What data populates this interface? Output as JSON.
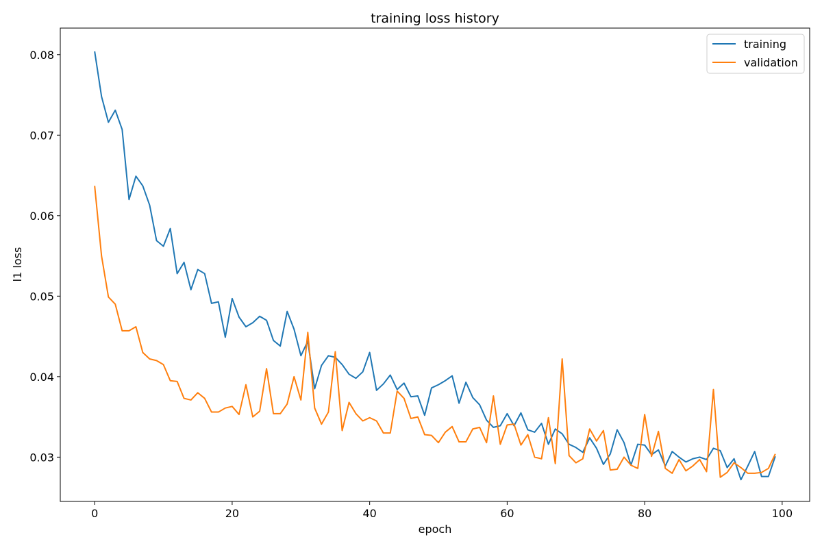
{
  "chart_data": {
    "type": "line",
    "title": "training loss history",
    "xlabel": "epoch",
    "ylabel": "l1 loss",
    "xlim": [
      -5,
      104
    ],
    "ylim": [
      0.0245,
      0.0833
    ],
    "xticks": [
      0,
      20,
      40,
      60,
      80,
      100
    ],
    "xtick_labels": [
      "0",
      "20",
      "40",
      "60",
      "80",
      "100"
    ],
    "yticks": [
      0.03,
      0.04,
      0.05,
      0.06,
      0.07,
      0.08
    ],
    "ytick_labels": [
      "0.03",
      "0.04",
      "0.05",
      "0.06",
      "0.07",
      "0.08"
    ],
    "grid": false,
    "legend_position": "top-right",
    "x": [
      0,
      1,
      2,
      3,
      4,
      5,
      6,
      7,
      8,
      9,
      10,
      11,
      12,
      13,
      14,
      15,
      16,
      17,
      18,
      19,
      20,
      21,
      22,
      23,
      24,
      25,
      26,
      27,
      28,
      29,
      30,
      31,
      32,
      33,
      34,
      35,
      36,
      37,
      38,
      39,
      40,
      41,
      42,
      43,
      44,
      45,
      46,
      47,
      48,
      49,
      50,
      51,
      52,
      53,
      54,
      55,
      56,
      57,
      58,
      59,
      60,
      61,
      62,
      63,
      64,
      65,
      66,
      67,
      68,
      69,
      70,
      71,
      72,
      73,
      74,
      75,
      76,
      77,
      78,
      79,
      80,
      81,
      82,
      83,
      84,
      85,
      86,
      87,
      88,
      89,
      90,
      91,
      92,
      93,
      94,
      95,
      96,
      97,
      98,
      99
    ],
    "series": [
      {
        "name": "training",
        "color": "#1f77b4",
        "values": [
          0.0804,
          0.0748,
          0.0716,
          0.0731,
          0.0707,
          0.062,
          0.0649,
          0.0637,
          0.0613,
          0.0569,
          0.0562,
          0.0584,
          0.0528,
          0.0542,
          0.0508,
          0.0533,
          0.0528,
          0.0491,
          0.0493,
          0.0449,
          0.0497,
          0.0474,
          0.0462,
          0.0467,
          0.0475,
          0.047,
          0.0445,
          0.0438,
          0.0481,
          0.0459,
          0.0426,
          0.0444,
          0.0385,
          0.0414,
          0.0426,
          0.0424,
          0.0415,
          0.0403,
          0.0398,
          0.0406,
          0.043,
          0.0383,
          0.0391,
          0.0402,
          0.0384,
          0.0392,
          0.0375,
          0.0376,
          0.0352,
          0.0386,
          0.039,
          0.0395,
          0.0401,
          0.0367,
          0.0393,
          0.0374,
          0.0365,
          0.0346,
          0.0337,
          0.0339,
          0.0354,
          0.0339,
          0.0355,
          0.0334,
          0.0331,
          0.0342,
          0.0316,
          0.0335,
          0.0329,
          0.0316,
          0.0312,
          0.0306,
          0.0324,
          0.0311,
          0.0291,
          0.0304,
          0.0334,
          0.0318,
          0.029,
          0.0316,
          0.0315,
          0.0303,
          0.0309,
          0.0289,
          0.0307,
          0.03,
          0.0294,
          0.0298,
          0.03,
          0.0297,
          0.0311,
          0.0308,
          0.0287,
          0.0298,
          0.0272,
          0.0289,
          0.0307,
          0.0276,
          0.0276,
          0.0301
        ]
      },
      {
        "name": "validation",
        "color": "#ff7f0e",
        "values": [
          0.0637,
          0.055,
          0.0499,
          0.049,
          0.0457,
          0.0457,
          0.0462,
          0.043,
          0.0422,
          0.042,
          0.0415,
          0.0395,
          0.0394,
          0.0373,
          0.0371,
          0.038,
          0.0373,
          0.0356,
          0.0356,
          0.0361,
          0.0363,
          0.0353,
          0.039,
          0.035,
          0.0357,
          0.041,
          0.0354,
          0.0354,
          0.0366,
          0.04,
          0.0371,
          0.0455,
          0.0361,
          0.0341,
          0.0356,
          0.0431,
          0.0333,
          0.0368,
          0.0354,
          0.0345,
          0.0349,
          0.0345,
          0.033,
          0.033,
          0.0382,
          0.0373,
          0.0348,
          0.035,
          0.0328,
          0.0327,
          0.0318,
          0.0331,
          0.0338,
          0.0319,
          0.0319,
          0.0335,
          0.0337,
          0.0318,
          0.0376,
          0.0316,
          0.034,
          0.0341,
          0.0315,
          0.0328,
          0.03,
          0.0298,
          0.0349,
          0.0292,
          0.0422,
          0.0302,
          0.0293,
          0.0298,
          0.0335,
          0.032,
          0.0333,
          0.0284,
          0.0285,
          0.03,
          0.029,
          0.0286,
          0.0353,
          0.0301,
          0.0332,
          0.0286,
          0.028,
          0.0297,
          0.0283,
          0.0289,
          0.0297,
          0.0282,
          0.0384,
          0.0275,
          0.0281,
          0.0293,
          0.0287,
          0.028,
          0.028,
          0.0281,
          0.0286,
          0.0304
        ]
      }
    ]
  }
}
